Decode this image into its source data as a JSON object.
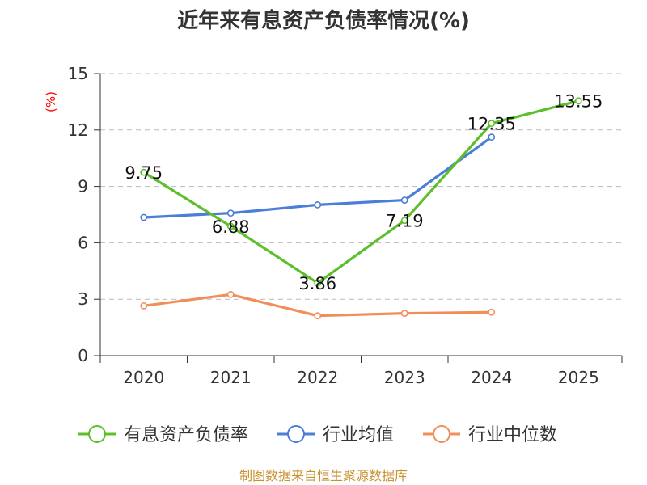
{
  "chart_data": {
    "type": "line",
    "title": "近年来有息资产负债率情况(%)",
    "ylabel": "(%)",
    "xlabel": "",
    "categories": [
      "2020",
      "2021",
      "2022",
      "2023",
      "2024",
      "2025"
    ],
    "ylim": [
      0,
      15
    ],
    "yticks": [
      0,
      3,
      6,
      9,
      12,
      15
    ],
    "grid": true,
    "legend_position": "bottom",
    "series": [
      {
        "name": "有息资产负债率",
        "color": "#5dbf2b",
        "values": [
          9.75,
          6.88,
          3.86,
          7.19,
          12.35,
          13.55
        ],
        "labels": [
          "9.75",
          "6.88",
          "3.86",
          "7.19",
          "12.35",
          "13.55"
        ]
      },
      {
        "name": "行业均值",
        "color": "#4b7ed8",
        "values": [
          7.35,
          7.58,
          8.02,
          8.27,
          11.62,
          null
        ]
      },
      {
        "name": "行业中位数",
        "color": "#f28e5a",
        "values": [
          2.65,
          3.25,
          2.12,
          2.25,
          2.31,
          null
        ]
      }
    ],
    "source": "制图数据来自恒生聚源数据库"
  }
}
